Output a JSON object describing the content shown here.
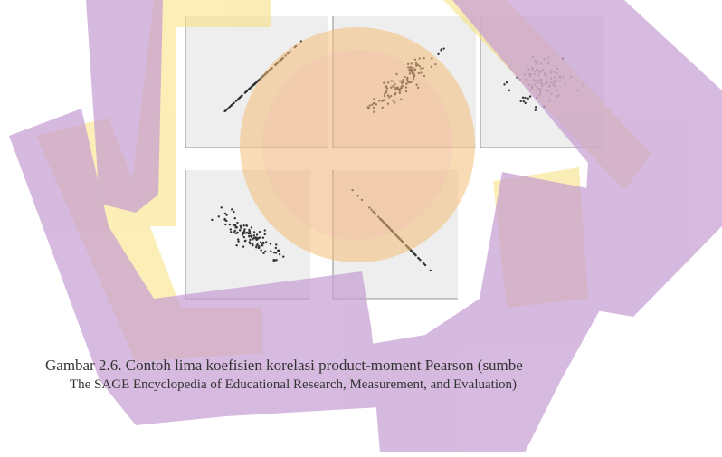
{
  "figure": {
    "caption": {
      "line1": "Gambar 2.6. Contoh lima koefisien korelasi product-moment Pearson (sumbe",
      "line2": "The SAGE Encyclopedia of Educational Research, Measurement, and Evaluation)"
    }
  }
}
